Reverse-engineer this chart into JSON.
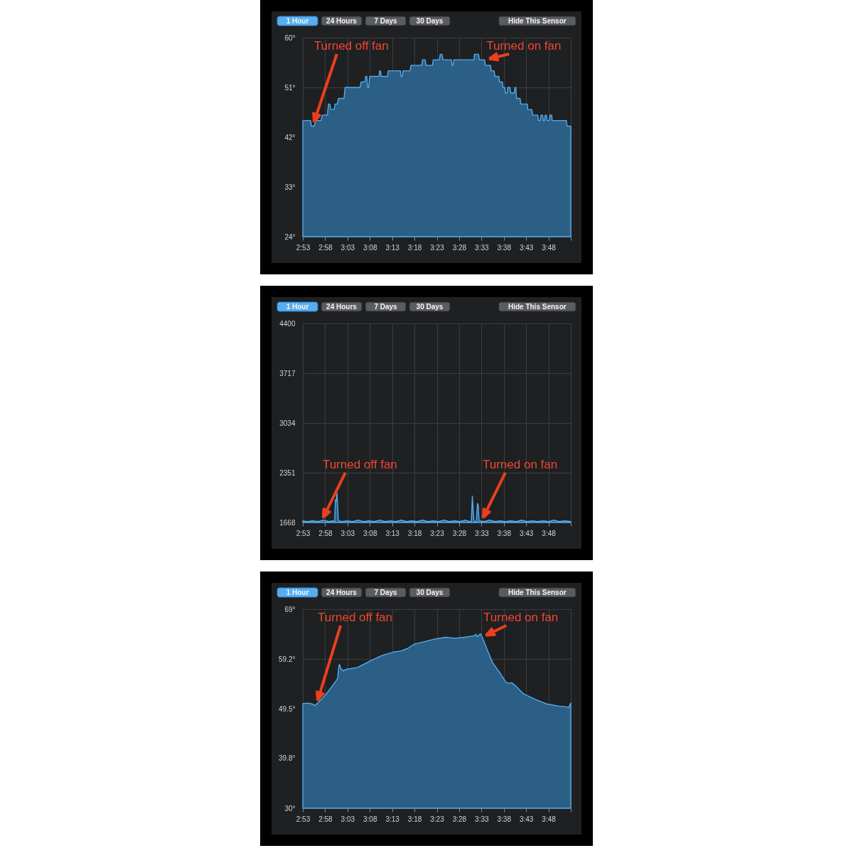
{
  "chart_data": [
    {
      "type": "area",
      "color": "#2c5f86",
      "grid": true,
      "x": [
        2.8833,
        2.912,
        2.916,
        2.926,
        2.931,
        2.951,
        2.956,
        2.975,
        2.979,
        2.984,
        2.988,
        3.0,
        3.004,
        3.012,
        3.016,
        3.037,
        3.041,
        3.097,
        3.101,
        3.115,
        3.118,
        3.122,
        3.125,
        3.129,
        3.133,
        3.168,
        3.17,
        3.173,
        3.176,
        3.199,
        3.202,
        3.248,
        3.25,
        3.255,
        3.257,
        3.283,
        3.287,
        3.327,
        3.33,
        3.34,
        3.343,
        3.367,
        3.37,
        3.393,
        3.396,
        3.403,
        3.406,
        3.438,
        3.44,
        3.444,
        3.447,
        3.522,
        3.524,
        3.539,
        3.542,
        3.562,
        3.564,
        3.584,
        3.586,
        3.597,
        3.6,
        3.615,
        3.617,
        3.628,
        3.63,
        3.637,
        3.639,
        3.646,
        3.648,
        3.656,
        3.659,
        3.672,
        3.675,
        3.678,
        3.681,
        3.694,
        3.697,
        3.721,
        3.723,
        3.738,
        3.741,
        3.76,
        3.763,
        3.769,
        3.772,
        3.778,
        3.781,
        3.785,
        3.788,
        3.792,
        3.795,
        3.803,
        3.806,
        3.812,
        3.814,
        3.867,
        3.869,
        3.8833
      ],
      "values": [
        45,
        45,
        44,
        44,
        45,
        45,
        46,
        46,
        48,
        48,
        47,
        47,
        48,
        48,
        49,
        49,
        51,
        51,
        52,
        52,
        53,
        53,
        51,
        51,
        53,
        53,
        54,
        54,
        53,
        53,
        54,
        54,
        53,
        53,
        54,
        54,
        55,
        55,
        56,
        56,
        55,
        55,
        56,
        56,
        57,
        57,
        56,
        56,
        55,
        55,
        56,
        56,
        57,
        57,
        56,
        56,
        55,
        55,
        54,
        54,
        53,
        53,
        52,
        52,
        51,
        51,
        50,
        50,
        51,
        51,
        50,
        50,
        51,
        51,
        49,
        49,
        48,
        48,
        47,
        47,
        46,
        46,
        45,
        45,
        46,
        46,
        45,
        45,
        46,
        46,
        45,
        45,
        46,
        46,
        45,
        45,
        44,
        44
      ],
      "xlim": [
        2.8833,
        3.8833
      ],
      "xticks": [
        {
          "value": 2.8833,
          "label": "2:53"
        },
        {
          "value": 2.9667,
          "label": "2:58"
        },
        {
          "value": 3.05,
          "label": "3:03"
        },
        {
          "value": 3.1333,
          "label": "3:08"
        },
        {
          "value": 3.2167,
          "label": "3:13"
        },
        {
          "value": 3.3,
          "label": "3:18"
        },
        {
          "value": 3.3833,
          "label": "3:23"
        },
        {
          "value": 3.4667,
          "label": "3:28"
        },
        {
          "value": 3.55,
          "label": "3:33"
        },
        {
          "value": 3.6333,
          "label": "3:38"
        },
        {
          "value": 3.7167,
          "label": "3:43"
        },
        {
          "value": 3.8,
          "label": "3:48"
        },
        {
          "value": 3.8833,
          "label": null
        }
      ],
      "ylim": [
        24,
        60
      ],
      "yticks": [
        {
          "value": 24,
          "label": "24°"
        },
        {
          "value": 33,
          "label": "33°"
        },
        {
          "value": 42,
          "label": "42°"
        },
        {
          "value": 51,
          "label": "51°"
        },
        {
          "value": 60,
          "label": "60°"
        }
      ],
      "annotations": [
        "1 Hour",
        "24 Hours",
        "7 Days",
        "30 Days",
        "Hide This Sensor",
        {
          "text": "Turned off fan",
          "x": 2.92,
          "y": 44
        },
        {
          "text": "Turned on fan",
          "x": 3.563,
          "y": 56
        }
      ]
    },
    {
      "type": "area",
      "color": "#2c5f86",
      "grid": true,
      "x": [
        2.8833,
        2.9,
        2.92,
        2.94,
        2.96,
        2.98,
        2.995,
        3.002,
        3.005,
        3.008,
        3.011,
        3.016,
        3.03,
        3.05,
        3.07,
        3.09,
        3.11,
        3.13,
        3.15,
        3.17,
        3.19,
        3.21,
        3.23,
        3.25,
        3.27,
        3.29,
        3.31,
        3.33,
        3.35,
        3.37,
        3.39,
        3.41,
        3.43,
        3.45,
        3.47,
        3.49,
        3.505,
        3.512,
        3.516,
        3.519,
        3.522,
        3.527,
        3.531,
        3.535,
        3.538,
        3.541,
        3.56,
        3.58,
        3.6,
        3.62,
        3.64,
        3.66,
        3.68,
        3.7,
        3.72,
        3.74,
        3.76,
        3.78,
        3.8,
        3.82,
        3.84,
        3.86,
        3.8833
      ],
      "values": [
        1690,
        1680,
        1690,
        1680,
        1700,
        1680,
        1690,
        1680,
        1980,
        1960,
        2070,
        1690,
        1680,
        1690,
        1680,
        1700,
        1680,
        1690,
        1680,
        1700,
        1680,
        1690,
        1680,
        1700,
        1680,
        1690,
        1680,
        1700,
        1680,
        1690,
        1680,
        1700,
        1680,
        1690,
        1680,
        1700,
        1680,
        1680,
        2030,
        1830,
        1690,
        1680,
        1680,
        1930,
        1900,
        1690,
        1680,
        1700,
        1680,
        1690,
        1680,
        1690,
        1680,
        1700,
        1680,
        1690,
        1680,
        1690,
        1680,
        1700,
        1680,
        1690,
        1680
      ],
      "xlim": [
        2.8833,
        3.8833
      ],
      "xticks": [
        {
          "value": 2.8833,
          "label": "2:53"
        },
        {
          "value": 2.9667,
          "label": "2:58"
        },
        {
          "value": 3.05,
          "label": "3:03"
        },
        {
          "value": 3.1333,
          "label": "3:08"
        },
        {
          "value": 3.2167,
          "label": "3:13"
        },
        {
          "value": 3.3,
          "label": "3:18"
        },
        {
          "value": 3.3833,
          "label": "3:23"
        },
        {
          "value": 3.4667,
          "label": "3:28"
        },
        {
          "value": 3.55,
          "label": "3:33"
        },
        {
          "value": 3.6333,
          "label": "3:38"
        },
        {
          "value": 3.7167,
          "label": "3:43"
        },
        {
          "value": 3.8,
          "label": "3:48"
        },
        {
          "value": 3.8833,
          "label": null
        }
      ],
      "ylim": [
        1668,
        4400
      ],
      "yticks": [
        1668,
        2351,
        3034,
        3717,
        4400
      ],
      "annotations": [
        "1 Hour",
        "24 Hours",
        "7 Days",
        "30 Days",
        "Hide This Sensor",
        {
          "text": "Turned off fan",
          "x": 2.952,
          "y": 1680
        },
        {
          "text": "Turned on fan",
          "x": 3.549,
          "y": 1680
        }
      ]
    },
    {
      "type": "area",
      "color": "#2c5f86",
      "grid": true,
      "x": [
        2.8833,
        2.903,
        2.92,
        2.929,
        2.938,
        2.956,
        2.974,
        2.991,
        3.009,
        3.013,
        3.018,
        3.02,
        3.025,
        3.035,
        3.044,
        3.088,
        3.133,
        3.177,
        3.221,
        3.248,
        3.274,
        3.301,
        3.327,
        3.371,
        3.416,
        3.451,
        3.486,
        3.522,
        3.529,
        3.535,
        3.546,
        3.553,
        3.575,
        3.592,
        3.619,
        3.641,
        3.65,
        3.663,
        3.681,
        3.707,
        3.752,
        3.796,
        3.84,
        3.866,
        3.875,
        3.8833
      ],
      "values": [
        50.5,
        50.6,
        50.4,
        50.1,
        50.6,
        51.5,
        52.6,
        53.8,
        55.1,
        55.4,
        57.9,
        58.2,
        57.4,
        56.9,
        57.2,
        57.6,
        58.8,
        59.9,
        60.6,
        60.8,
        61.3,
        62.2,
        62.5,
        63.1,
        63.5,
        63.3,
        63.5,
        63.8,
        64.1,
        63.6,
        64.2,
        63.5,
        60.6,
        58.5,
        56.5,
        54.7,
        54.5,
        54.6,
        53.8,
        52.4,
        51.3,
        50.4,
        50.0,
        49.9,
        49.7,
        50.6
      ],
      "xlim": [
        2.8833,
        3.8833
      ],
      "xticks": [
        {
          "value": 2.8833,
          "label": "2:53"
        },
        {
          "value": 2.9667,
          "label": "2:58"
        },
        {
          "value": 3.05,
          "label": "3:03"
        },
        {
          "value": 3.1333,
          "label": "3:08"
        },
        {
          "value": 3.2167,
          "label": "3:13"
        },
        {
          "value": 3.3,
          "label": "3:18"
        },
        {
          "value": 3.3833,
          "label": "3:23"
        },
        {
          "value": 3.4667,
          "label": "3:28"
        },
        {
          "value": 3.55,
          "label": "3:33"
        },
        {
          "value": 3.6333,
          "label": "3:38"
        },
        {
          "value": 3.7167,
          "label": "3:43"
        },
        {
          "value": 3.8,
          "label": "3:48"
        },
        {
          "value": 3.8833,
          "label": null
        }
      ],
      "ylim": [
        30,
        69
      ],
      "yticks": [
        {
          "value": 30,
          "label": "30°"
        },
        {
          "value": 39.8,
          "label": "39.8°"
        },
        {
          "value": 49.5,
          "label": "49.5°"
        },
        {
          "value": 59.2,
          "label": "59.2°"
        },
        {
          "value": 69,
          "label": "69°"
        }
      ],
      "annotations": [
        "1 Hour",
        "24 Hours",
        "7 Days",
        "30 Days",
        "Hide This Sensor",
        {
          "text": "Turned off fan",
          "x": 2.934,
          "y": 50.3
        },
        {
          "text": "Turned on fan",
          "x": 3.552,
          "y": 63.5
        }
      ]
    }
  ]
}
